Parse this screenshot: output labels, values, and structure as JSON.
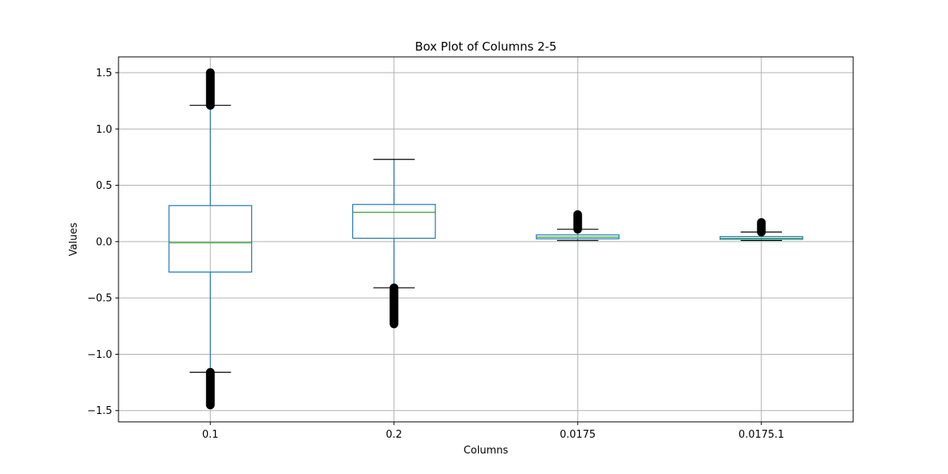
{
  "chart_data": {
    "type": "box",
    "title": "Box Plot of Columns 2-5",
    "xlabel": "Columns",
    "ylabel": "Values",
    "ylim": [
      -1.6,
      1.64
    ],
    "yticks": [
      -1.5,
      -1.0,
      -0.5,
      0.0,
      0.5,
      1.0,
      1.5
    ],
    "ytick_labels": [
      "−1.5",
      "−1.0",
      "−0.5",
      "0.0",
      "0.5",
      "1.0",
      "1.5"
    ],
    "grid": true,
    "colors": {
      "box": "#1f77b4",
      "median": "#2ca02c",
      "whisker_cap": "#000000",
      "flier": "#000000",
      "grid": "#b0b0b0"
    },
    "categories": [
      "0.1",
      "0.2",
      "0.0175",
      "0.0175.1"
    ],
    "boxes": [
      {
        "name": "0.1",
        "whislo": -1.16,
        "q1": -0.27,
        "median": -0.01,
        "q3": 0.32,
        "whishi": 1.21,
        "fliers_low": [
          -1.45,
          -1.16
        ],
        "fliers_high": [
          1.21,
          1.5
        ]
      },
      {
        "name": "0.2",
        "whislo": -0.41,
        "q1": 0.03,
        "median": 0.26,
        "q3": 0.33,
        "whishi": 0.73,
        "fliers_low": [
          -0.73,
          -0.41
        ],
        "fliers_high": []
      },
      {
        "name": "0.0175",
        "whislo": 0.01,
        "q1": 0.025,
        "median": 0.04,
        "q3": 0.06,
        "whishi": 0.11,
        "fliers_low": [],
        "fliers_high": [
          0.11,
          0.24
        ]
      },
      {
        "name": "0.0175.1",
        "whislo": 0.01,
        "q1": 0.02,
        "median": 0.03,
        "q3": 0.045,
        "whishi": 0.085,
        "fliers_low": [],
        "fliers_high": [
          0.085,
          0.17
        ]
      }
    ]
  }
}
